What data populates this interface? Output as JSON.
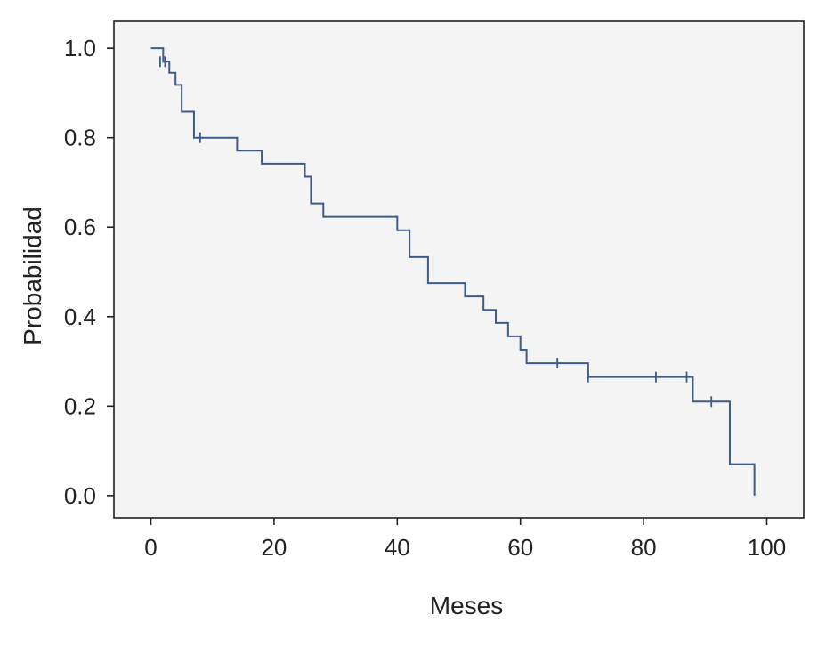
{
  "chart_data": {
    "type": "line",
    "step": "post",
    "title": "",
    "xlabel": "Meses",
    "ylabel": "Probabilidad",
    "xlim": [
      -6,
      106
    ],
    "ylim": [
      -0.05,
      1.06
    ],
    "xticks": [
      0,
      20,
      40,
      60,
      80,
      100
    ],
    "yticks": [
      0.0,
      0.2,
      0.4,
      0.6,
      0.8,
      1.0
    ],
    "xtick_labels": [
      "0",
      "20",
      "40",
      "60",
      "80",
      "100"
    ],
    "ytick_labels": [
      "0.0",
      "0.2",
      "0.4",
      "0.6",
      "0.8",
      "1.0"
    ],
    "grid": false,
    "legend": "none",
    "series": [
      {
        "x": [
          0,
          2,
          3,
          4,
          5,
          7,
          14,
          18,
          25,
          26,
          28,
          40,
          42,
          45,
          51,
          54,
          56,
          58,
          60,
          61,
          71,
          88,
          94,
          98
        ],
        "y": [
          1.0,
          0.97,
          0.945,
          0.918,
          0.858,
          0.8,
          0.771,
          0.742,
          0.713,
          0.653,
          0.623,
          0.593,
          0.533,
          0.475,
          0.445,
          0.415,
          0.386,
          0.356,
          0.326,
          0.296,
          0.265,
          0.21,
          0.07,
          0.0
        ],
        "censored": [
          {
            "x": 1.5,
            "y": 0.97
          },
          {
            "x": 2.3,
            "y": 0.97
          },
          {
            "x": 8,
            "y": 0.8
          },
          {
            "x": 66,
            "y": 0.296
          },
          {
            "x": 71,
            "y": 0.265
          },
          {
            "x": 82,
            "y": 0.265
          },
          {
            "x": 87,
            "y": 0.265
          },
          {
            "x": 91,
            "y": 0.21
          }
        ]
      }
    ],
    "colors": {
      "line": "#3f5a8c",
      "plot_background": "#f4f4f5",
      "axes": "#1f1f1f"
    }
  }
}
